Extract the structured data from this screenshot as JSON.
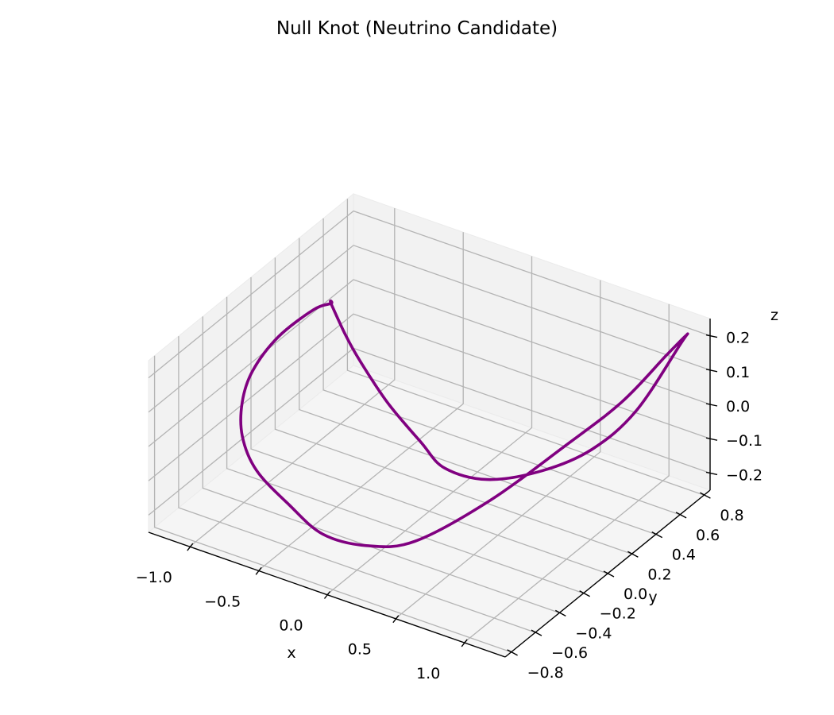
{
  "chart_data": {
    "type": "line",
    "projection": "3d",
    "title": "Null Knot (Neutrino Candidate)",
    "xlabel": "x",
    "ylabel": "y",
    "zlabel": "z",
    "xlim": [
      -1.3,
      1.3
    ],
    "ylim": [
      -0.85,
      0.85
    ],
    "zlim": [
      -0.25,
      0.25
    ],
    "xticks": [
      -1.0,
      -0.5,
      0.0,
      0.5,
      1.0
    ],
    "yticks": [
      -0.8,
      -0.6,
      -0.4,
      -0.2,
      0.0,
      0.2,
      0.4,
      0.6,
      0.8
    ],
    "zticks": [
      -0.2,
      -0.1,
      0.0,
      0.1,
      0.2
    ],
    "xtick_labels": [
      "−1.0",
      "−0.5",
      "0.0",
      "0.5",
      "1.0"
    ],
    "ytick_labels": [
      "−0.8",
      "−0.6",
      "−0.4",
      "−0.2",
      "0.0",
      "0.2",
      "0.4",
      "0.6",
      "0.8"
    ],
    "ztick_labels": [
      "−0.2",
      "−0.1",
      "0.0",
      "0.1",
      "0.2"
    ],
    "grid": true,
    "series": [
      {
        "color": "#800080",
        "x": [
          -1.2,
          -1.03,
          -0.88,
          -0.61,
          -0.28,
          -0.02,
          0.29,
          0.6,
          0.85,
          1.05,
          1.2,
          1.24,
          1.2,
          1.05,
          0.82,
          0.52,
          0.2,
          -0.02,
          -0.25,
          -0.48,
          -0.75,
          -0.95,
          -1.1,
          -1.2,
          -1.26,
          -1.24,
          -1.2
        ],
        "y": [
          0.55,
          0.48,
          0.43,
          0.35,
          0.25,
          0.15,
          0.15,
          0.25,
          0.38,
          0.52,
          0.72,
          0.72,
          0.6,
          0.4,
          0.18,
          -0.1,
          -0.35,
          -0.5,
          -0.6,
          -0.62,
          -0.58,
          -0.47,
          -0.3,
          -0.1,
          0.18,
          0.45,
          0.55
        ],
        "z": [
          0.03,
          -0.02,
          -0.06,
          -0.12,
          -0.16,
          -0.17,
          -0.16,
          -0.12,
          -0.06,
          0.04,
          0.2,
          0.23,
          0.2,
          0.1,
          0.0,
          -0.12,
          -0.21,
          -0.21,
          -0.18,
          -0.12,
          -0.07,
          -0.03,
          0.0,
          0.02,
          0.03,
          0.035,
          0.03
        ]
      }
    ]
  }
}
